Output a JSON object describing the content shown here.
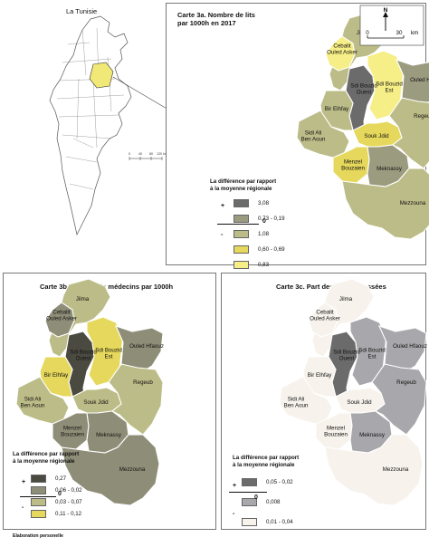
{
  "inset_map": {
    "title": "La Tunisie",
    "scale_ticks": [
      "0",
      "40",
      "80",
      "120 km"
    ]
  },
  "regions": {
    "jilma": "Jilma",
    "cebalit": "Cebalit\nOuled Asker",
    "sdi_bouzid_ouest": "Sdi Bouzid\nOuest",
    "sdi_bouzid_est": "Sdi Bouzid\nEst",
    "ouled_hfaouz": "Ouled Hfaouz",
    "bir_elhfay": "Bir Elhfay",
    "sidi_ali_ben_aoun": "Sidi Ali\nBen Aoun",
    "souk_jdid": "Souk Jdid",
    "regeub": "Regeub",
    "menzel_bouzaien": "Menzel\nBouzaien",
    "meknassy": "Meknassy",
    "mezzouna": "Mezzouna"
  },
  "map_a": {
    "title": "Carte 3a. Nombre de lits\npar 1000h en 2017",
    "north": "N",
    "scale_zero": "0",
    "scale_value": "30",
    "scale_unit": "km",
    "legend_title": "La différence par rapport\nà la moyenne régionale",
    "legend": [
      {
        "label": "3,08",
        "color": "#6b6b6b"
      },
      {
        "label": "0,73 - 0,19",
        "color": "#9b9b80"
      },
      {
        "label": "1,08",
        "color": "#bcbc88"
      },
      {
        "label": "0,60 - 0,69",
        "color": "#e6d85c"
      },
      {
        "label": "0,83",
        "color": "#f6ee86"
      }
    ],
    "plus": "+",
    "zero": "0",
    "minus": "-",
    "fills": {
      "jilma": "#bcbc88",
      "cebalit": "#f6ee86",
      "sdi_bouzid_ouest": "#6b6b6b",
      "sdi_bouzid_est": "#f6ee86",
      "ouled_hfaouz": "#9b9b80",
      "bir_elhfay": "#bcbc88",
      "sidi_ali_ben_aoun": "#bcbc88",
      "souk_jdid": "#e6d85c",
      "regeub": "#bcbc88",
      "menzel_bouzaien": "#e6d85c",
      "meknassy": "#9b9b80",
      "mezzouna": "#bcbc88"
    }
  },
  "map_b": {
    "title": "Carte 3b. Nombre de médecins par 1000h",
    "legend_title": "La différence par rapport\nà la moyenne régionale",
    "legend": [
      {
        "label": "0,27",
        "color": "#4a4a40"
      },
      {
        "label": "0,06 - 0,02",
        "color": "#8e8e78"
      },
      {
        "label": "0,03 - 0,07",
        "color": "#bcbc88"
      },
      {
        "label": "0,11 - 0,12",
        "color": "#e6d85c"
      }
    ],
    "plus": "+",
    "zero": "0",
    "minus": "-",
    "fills": {
      "jilma": "#bcbc88",
      "cebalit": "#8e8e78",
      "sdi_bouzid_ouest": "#4a4a40",
      "sdi_bouzid_est": "#e6d85c",
      "ouled_hfaouz": "#8e8e78",
      "bir_elhfay": "#e6d85c",
      "sidi_ali_ben_aoun": "#bcbc88",
      "souk_jdid": "#bcbc88",
      "regeub": "#bcbc88",
      "menzel_bouzaien": "#8e8e78",
      "meknassy": "#8e8e78",
      "mezzouna": "#8e8e78"
    }
  },
  "map_c": {
    "title": "Carte 3c. Part des routes classées",
    "legend_title": "La différence par rapport\nà la moyenne régionale",
    "legend": [
      {
        "label": "0,05 - 0,02",
        "color": "#6b6b6b"
      },
      {
        "label": "0,008",
        "color": "#a8a8ac"
      },
      {
        "label": "0,01 - 0,04",
        "color": "#f7f2ec"
      }
    ],
    "plus": "+",
    "zero": "0",
    "minus": "-",
    "fills": {
      "jilma": "#f7f2ec",
      "cebalit": "#f7f2ec",
      "sdi_bouzid_ouest": "#6b6b6b",
      "sdi_bouzid_est": "#a8a8ac",
      "ouled_hfaouz": "#a8a8ac",
      "bir_elhfay": "#f7f2ec",
      "sidi_ali_ben_aoun": "#f7f2ec",
      "souk_jdid": "#f7f2ec",
      "regeub": "#a8a8ac",
      "menzel_bouzaien": "#f7f2ec",
      "meknassy": "#a8a8ac",
      "mezzouna": "#f7f2ec"
    }
  },
  "credit": "Elaboration personelle"
}
